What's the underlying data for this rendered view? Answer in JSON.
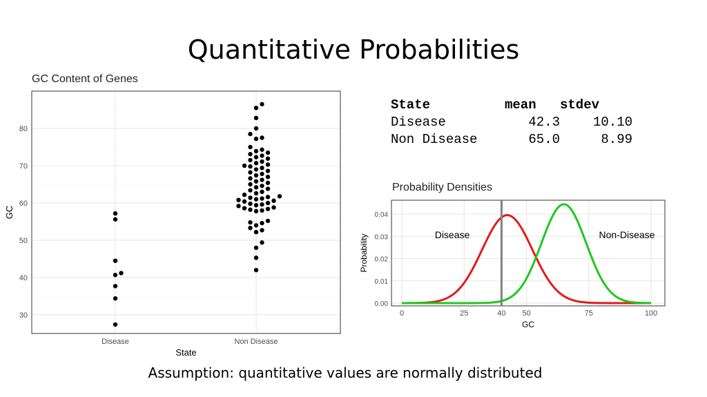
{
  "slide": {
    "title": "Quantitative Probabilities",
    "footer": "Assumption: quantitative values are normally distributed"
  },
  "stats_table": {
    "headers": [
      "State",
      "mean",
      "stdev"
    ],
    "rows": [
      [
        "Disease",
        "42.3",
        "10.10"
      ],
      [
        "Non Disease",
        "65.0",
        "8.99"
      ]
    ]
  },
  "chart_data": [
    {
      "type": "scatter",
      "title": "GC Content of Genes",
      "xlabel": "State",
      "ylabel": "GC",
      "categories": [
        "Disease",
        "Non Disease"
      ],
      "ylim": [
        25,
        90
      ],
      "yticks": [
        30,
        40,
        50,
        60,
        70,
        80
      ],
      "grid": true,
      "series": [
        {
          "category": "Disease",
          "values": [
            27.4,
            34.4,
            37.7,
            40.7,
            41.2,
            44.5,
            55.6,
            57.2
          ]
        },
        {
          "category": "Non Disease",
          "values": [
            42.0,
            45.3,
            48.0,
            49.4,
            52.2,
            52.7,
            53.3,
            54.0,
            54.6,
            54.8,
            55.2,
            57.8,
            58.0,
            58.2,
            58.4,
            58.6,
            58.8,
            59.2,
            59.4,
            59.6,
            59.8,
            60.0,
            60.4,
            60.6,
            60.8,
            61.0,
            61.2,
            61.4,
            61.6,
            61.8,
            62.2,
            62.6,
            63.0,
            63.4,
            63.8,
            64.2,
            64.6,
            65.0,
            65.4,
            65.8,
            66.2,
            66.6,
            67.0,
            67.4,
            67.8,
            68.2,
            68.6,
            69.0,
            69.4,
            69.8,
            70.0,
            70.3,
            70.7,
            71.1,
            71.5,
            71.9,
            72.3,
            72.7,
            73.1,
            73.5,
            73.9,
            74.3,
            75.0,
            77.2,
            77.5,
            78.5,
            80.0,
            82.8,
            85.5,
            86.5
          ]
        }
      ]
    },
    {
      "type": "line",
      "title": "Probability Densities",
      "xlabel": "GC",
      "ylabel": "Probability",
      "xlim": [
        0,
        100
      ],
      "ylim": [
        0,
        0.045
      ],
      "xticks": [
        "0",
        "25",
        "40",
        "50",
        "75",
        "100"
      ],
      "yticks": [
        "0.00",
        "0.01",
        "0.02",
        "0.03",
        "0.04"
      ],
      "grid": true,
      "series": [
        {
          "name": "Disease",
          "mean": 42.3,
          "stdev": 10.1,
          "color": "#e31a1c"
        },
        {
          "name": "Non-Disease",
          "mean": 65.0,
          "stdev": 8.99,
          "color": "#1ec81e"
        }
      ],
      "vline": {
        "x": 40,
        "color": "#808080"
      }
    }
  ]
}
